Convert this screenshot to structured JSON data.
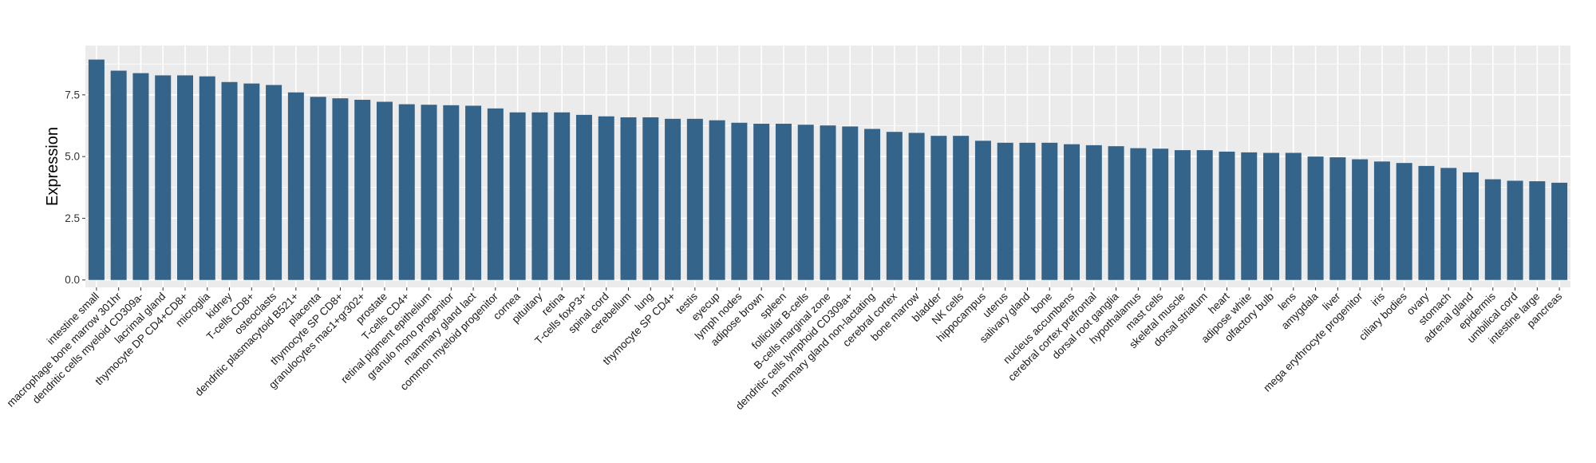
{
  "chart_data": {
    "type": "bar",
    "ylabel": "Expression",
    "xlabel": "",
    "ylim": [
      -0.3,
      9.5
    ],
    "yticks": [
      0.0,
      2.5,
      5.0,
      7.5
    ],
    "ytick_labels": [
      "0.0",
      "2.5",
      "5.0",
      "7.5"
    ],
    "grid": true,
    "colors": {
      "bar": "#35648b",
      "panel": "#ebebeb",
      "grid": "#ffffff"
    },
    "categories": [
      "intestine small",
      "macrophage bone marrow 301hr",
      "dendritic cells myeloid CD309a-",
      "lacrimal gland",
      "thymocyte DP CD4+CD8+",
      "microglia",
      "kidney",
      "T-cells CD8+",
      "osteoclasts",
      "dendritic plasmacytoid B521+",
      "placenta",
      "thymocyte SP CD8+",
      "granulocytes mac1+gr302+",
      "prostate",
      "T-cells CD4+",
      "retinal pigment epithelium",
      "granulo mono progenitor",
      "mammary gland  lact",
      "common myeloid progenitor",
      "cornea",
      "pituitary",
      "retina",
      "T-cells foxP3+",
      "spinal cord",
      "cerebellum",
      "lung",
      "thymocyte SP CD4+",
      "testis",
      "eyecup",
      "lymph nodes",
      "adipose brown",
      "spleen",
      "follicular B-cells",
      "B-cells marginal zone",
      "dendritic cells lymphoid CD309a+",
      "mammary gland non-lactating",
      "cerebral cortex",
      "bone marrow",
      "bladder",
      "NK cells",
      "hippocampus",
      "uterus",
      "salivary gland",
      "bone",
      "nucleus accumbens",
      "cerebral cortex prefrontal",
      "dorsal root ganglia",
      "hypothalamus",
      "mast cells",
      "skeletal muscle",
      "dorsal striatum",
      "heart",
      "adipose white",
      "olfactory bulb",
      "lens",
      "amygdala",
      "liver",
      "mega erythrocyte progenitor",
      "iris",
      "ciliary bodies",
      "ovary",
      "stomach",
      "adrenal gland",
      "epidermis",
      "umbilical cord",
      "intestine large",
      "pancreas"
    ],
    "values": [
      8.93,
      8.48,
      8.38,
      8.29,
      8.29,
      8.25,
      8.02,
      7.96,
      7.9,
      7.6,
      7.42,
      7.36,
      7.3,
      7.22,
      7.12,
      7.1,
      7.08,
      7.06,
      6.95,
      6.79,
      6.79,
      6.79,
      6.69,
      6.63,
      6.59,
      6.59,
      6.53,
      6.53,
      6.47,
      6.37,
      6.33,
      6.33,
      6.29,
      6.26,
      6.22,
      6.12,
      6.0,
      5.96,
      5.84,
      5.84,
      5.64,
      5.56,
      5.56,
      5.56,
      5.5,
      5.46,
      5.42,
      5.34,
      5.32,
      5.26,
      5.26,
      5.2,
      5.17,
      5.15,
      5.15,
      5.0,
      4.97,
      4.89,
      4.8,
      4.74,
      4.62,
      4.54,
      4.36,
      4.08,
      4.02,
      4.0,
      3.94
    ]
  }
}
